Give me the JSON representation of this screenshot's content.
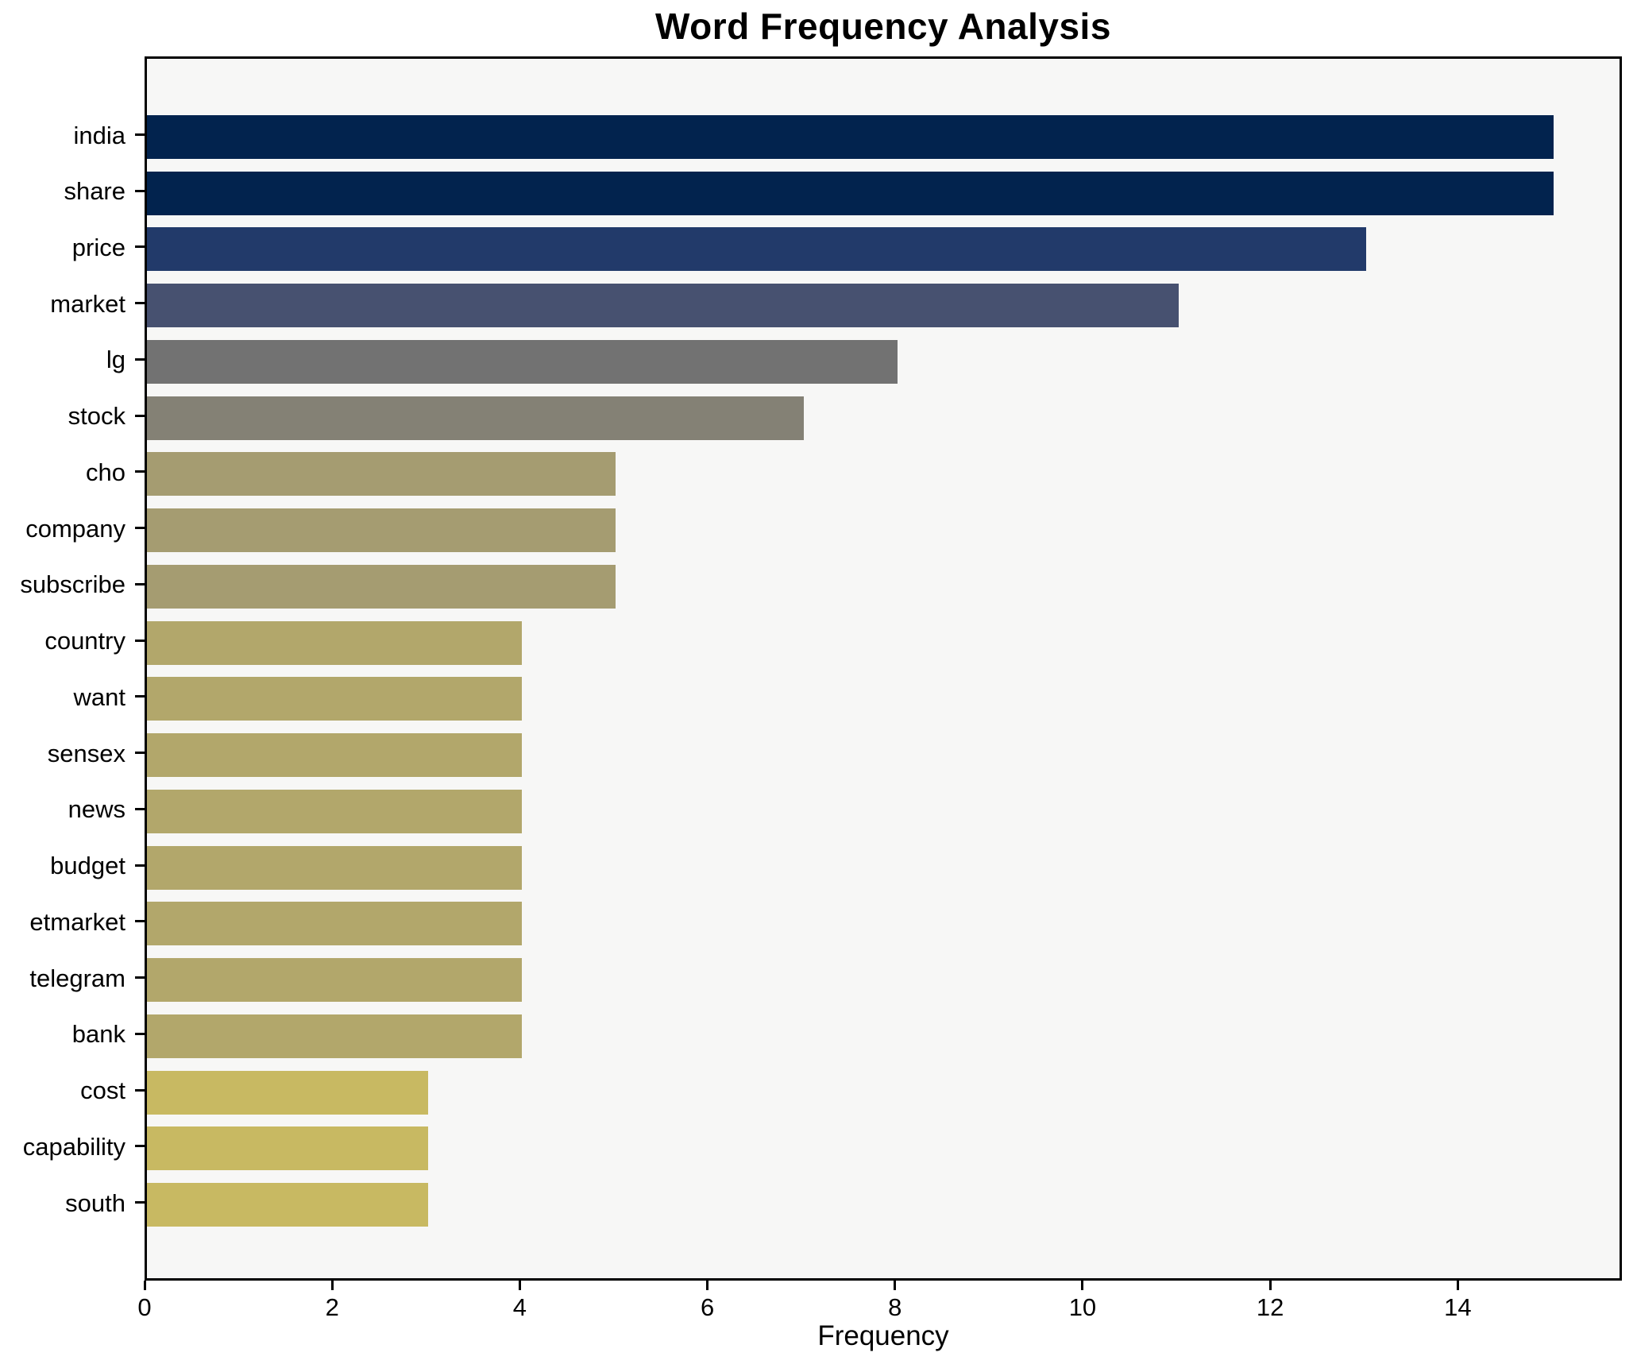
{
  "title": "Word Frequency Analysis",
  "chart_data": {
    "type": "bar",
    "orientation": "horizontal",
    "title": "Word Frequency Analysis",
    "xlabel": "Frequency",
    "ylabel": "",
    "categories": [
      "india",
      "share",
      "price",
      "market",
      "lg",
      "stock",
      "cho",
      "company",
      "subscribe",
      "country",
      "want",
      "sensex",
      "news",
      "budget",
      "etmarket",
      "telegram",
      "bank",
      "cost",
      "capability",
      "south"
    ],
    "values": [
      15,
      15,
      13,
      11,
      8,
      7,
      5,
      5,
      5,
      4,
      4,
      4,
      4,
      4,
      4,
      4,
      4,
      3,
      3,
      3
    ],
    "bar_colors": [
      "#02234e",
      "#02234e",
      "#223a6a",
      "#475170",
      "#727272",
      "#848175",
      "#a59c71",
      "#a59c71",
      "#a59c71",
      "#b2a76b",
      "#b2a76b",
      "#b2a76b",
      "#b2a76b",
      "#b2a76b",
      "#b2a76b",
      "#b2a76b",
      "#b2a76b",
      "#c8b962",
      "#c8b962",
      "#c8b962"
    ],
    "xlim": [
      0,
      15.75
    ],
    "xticks": [
      0,
      2,
      4,
      6,
      8,
      10,
      12,
      14
    ],
    "grid": false,
    "legend": "none",
    "plot_background": "#f7f7f6",
    "figure_background": "#ffffff",
    "colormap": "cividis (high=dark blue, low=yellow)"
  }
}
